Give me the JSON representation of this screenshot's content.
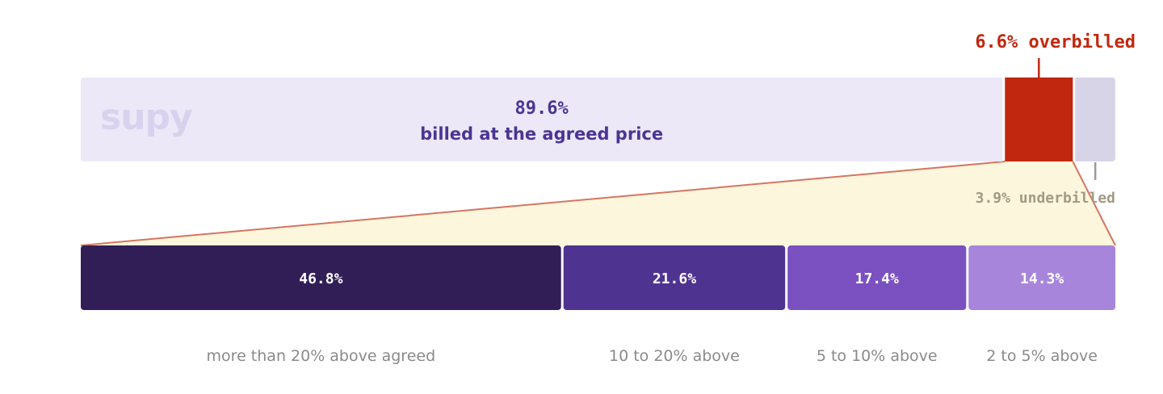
{
  "brand": {
    "logo_text": "supy",
    "logo_color": "#d9d2ee"
  },
  "chart_data": {
    "type": "bar",
    "subtype": "stacked-100-with-breakdown",
    "total_bar": {
      "segments": [
        {
          "label": "billed at the agreed price",
          "value": 89.6,
          "value_label": "89.6%",
          "color": "#ece8f8",
          "text_color": "#4b3591"
        },
        {
          "label": "overbilled",
          "value": 6.6,
          "value_label": "6.6% overbilled",
          "color": "#c1270f",
          "text_color": "#c1270f"
        },
        {
          "label": "underbilled",
          "value": 3.9,
          "value_label": "3.9% underbilled",
          "color": "#d8d4e8",
          "text_color": "#a29a84"
        }
      ]
    },
    "breakdown_of": "overbilled",
    "breakdown_bar": {
      "categories": [
        "more than 20% above agreed",
        "10 to 20% above",
        "5 to 10% above",
        "2 to 5% above"
      ],
      "values": [
        46.8,
        21.6,
        17.4,
        14.3
      ],
      "value_labels": [
        "46.8%",
        "21.6%",
        "17.4%",
        "14.3%"
      ],
      "colors": [
        "#321e57",
        "#4f3391",
        "#7b50c1",
        "#a785db"
      ]
    },
    "connector_fill": "#fcf6dc",
    "connector_stroke": "#d67561",
    "category_label_color": "#8a8a8a"
  }
}
